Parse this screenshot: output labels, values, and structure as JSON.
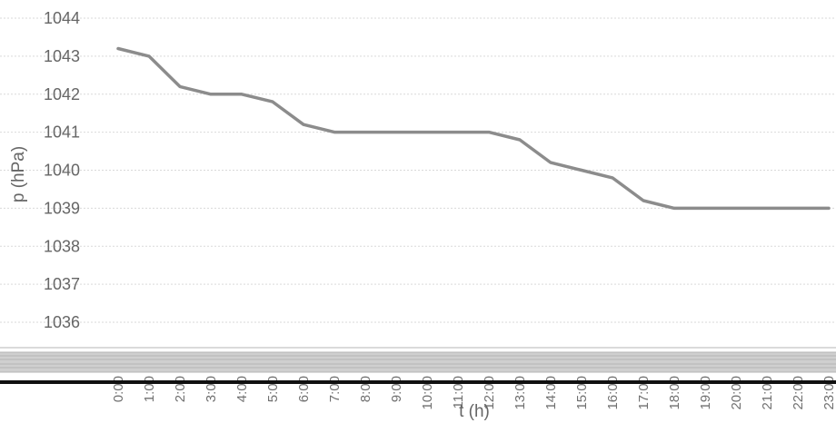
{
  "chart_data": {
    "type": "line",
    "title": "",
    "xlabel": "t (h)",
    "ylabel": "p (hPa)",
    "ylim": [
      1036,
      1044
    ],
    "yticks": [
      "1036",
      "1037",
      "1038",
      "1039",
      "1040",
      "1041",
      "1042",
      "1043",
      "1044"
    ],
    "grid": true,
    "legend": "none",
    "line_color": "#8c8c8c",
    "categories": [
      "0:00",
      "1:00",
      "2:00",
      "3:00",
      "4:00",
      "5:00",
      "6:00",
      "7:00",
      "8:00",
      "9:00",
      "10:00",
      "11:00",
      "12:00",
      "13:00",
      "14:00",
      "15:00",
      "16:00",
      "17:00",
      "18:00",
      "19:00",
      "20:00",
      "21:00",
      "22:00",
      "23:00"
    ],
    "series": [
      {
        "values": [
          1043.2,
          1043.0,
          1042.2,
          1042.0,
          1042.0,
          1041.8,
          1041.2,
          1041.0,
          1041.0,
          1041.0,
          1041.0,
          1041.0,
          1041.0,
          1040.8,
          1040.2,
          1040.0,
          1039.8,
          1039.2,
          1039.0,
          1039.0,
          1039.0,
          1039.0,
          1039.0,
          1039.0
        ]
      }
    ]
  }
}
